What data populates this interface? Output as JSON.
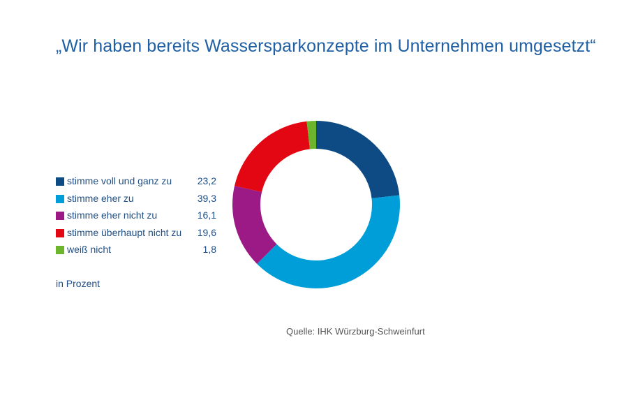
{
  "chart_data": {
    "type": "pie",
    "title": "„Wir haben bereits Wassersparkonzepte im Unternehmen umgesetzt“",
    "unit_note": "in Prozent",
    "source": "Quelle: IHK Würzburg-Schweinfurt",
    "categories": [
      "stimme voll und ganz zu",
      "stimme eher zu",
      "stimme eher nicht zu",
      "stimme überhaupt nicht zu",
      "weiß nicht"
    ],
    "value_labels": [
      "23,2",
      "39,3",
      "16,1",
      "19,6",
      "1,8"
    ],
    "values": [
      23.2,
      39.3,
      16.1,
      19.6,
      1.8
    ],
    "colors": [
      "#0e4b85",
      "#009ed8",
      "#9b1a86",
      "#e30613",
      "#6cb52d"
    ],
    "legend_position": "left",
    "donut": true
  }
}
